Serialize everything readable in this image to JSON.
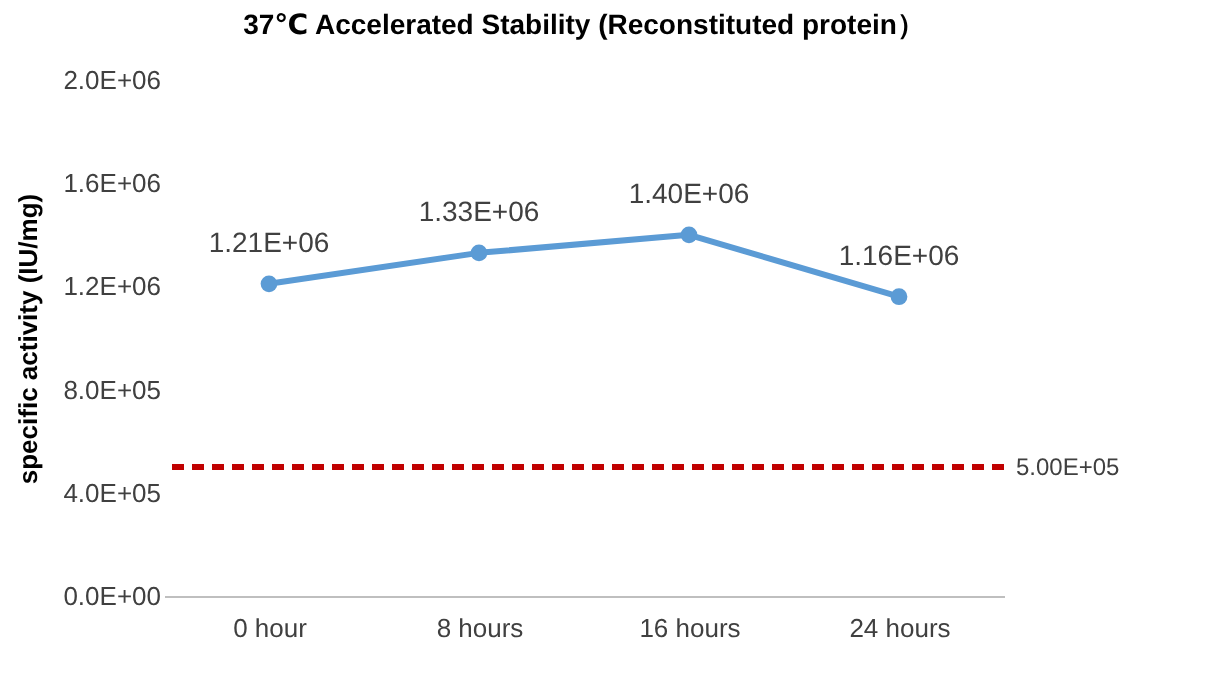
{
  "chart_data": {
    "type": "line",
    "title": "37℃ Accelerated Stability (Reconstituted protein）",
    "ylabel": "specific activity (IU/mg)",
    "categories": [
      "0 hour",
      "8 hours",
      "16 hours",
      "24 hours"
    ],
    "series": [
      {
        "color": "#5b9bd5",
        "values": [
          1210000,
          1330000,
          1400000,
          1160000
        ],
        "value_labels": [
          "1.21E+06",
          "1.33E+06",
          "1.40E+06",
          "1.16E+06"
        ]
      }
    ],
    "ylim": [
      0,
      2000000
    ],
    "yticks": [
      {
        "value": 0,
        "label": "0.0E+00"
      },
      {
        "value": 400000,
        "label": "4.0E+05"
      },
      {
        "value": 800000,
        "label": "8.0E+05"
      },
      {
        "value": 1200000,
        "label": "1.2E+06"
      },
      {
        "value": 1600000,
        "label": "1.6E+06"
      },
      {
        "value": 2000000,
        "label": "2.0E+06"
      }
    ],
    "ref_lines": [
      {
        "axis": "y",
        "value": 500000,
        "label": "5.00E+05",
        "color": "#c00000",
        "line_style": "dashed"
      }
    ],
    "marker": "circle",
    "grid": false
  }
}
